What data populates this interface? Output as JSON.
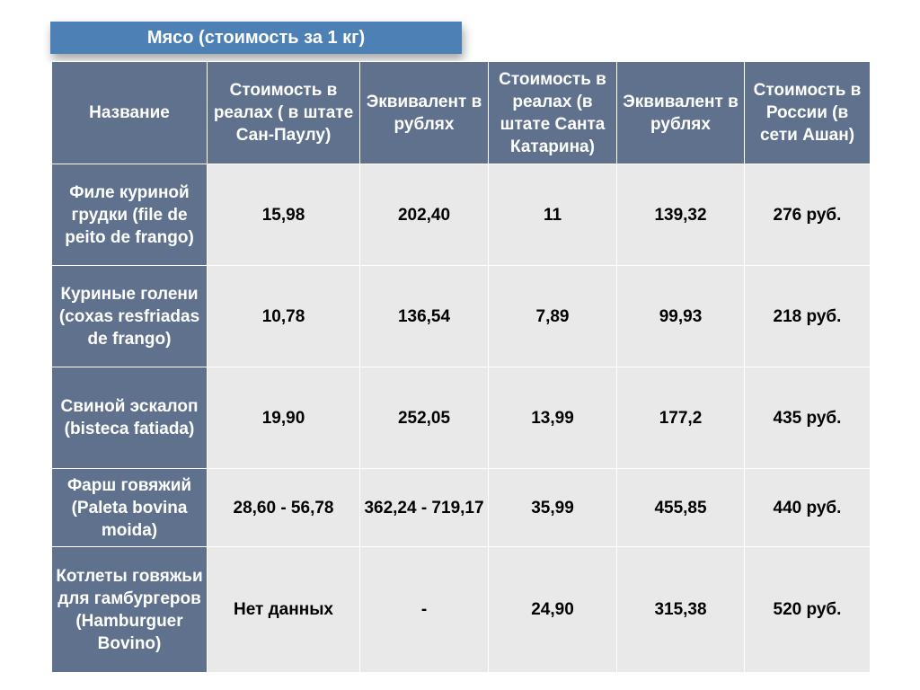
{
  "title": "Мясо (стоимость за 1 кг)",
  "table": {
    "headers": [
      "Название",
      "Стоимость в реалах ( в штате Сан-Паулу)",
      "Эквивалент в рублях",
      "Стоимость в реалах (в штате Санта Катарина)",
      "Эквивалент в рублях",
      "Стоимость в России (в сети Ашан)"
    ],
    "rows": [
      {
        "name": "Филе куриной грудки (file de peito de frango)",
        "cells": [
          "15,98",
          "202,40",
          "11",
          "139,32",
          "276 руб."
        ]
      },
      {
        "name": "Куриные голени (coxas resfriadas de frango)",
        "cells": [
          "10,78",
          "136,54",
          "7,89",
          "99,93",
          "218 руб."
        ]
      },
      {
        "name": "Свиной эскалоп (bisteca fatiada)",
        "cells": [
          "19,90",
          "252,05",
          "13,99",
          "177,2",
          "435 руб."
        ]
      },
      {
        "name": "Фарш говяжий (Paleta bovina moida)",
        "cells": [
          "28,60 - 56,78",
          "362,24 - 719,17",
          "35,99",
          "455,85",
          "440 руб."
        ]
      },
      {
        "name": "Котлеты говяжьи для гамбургеров (Hamburguer Bovino)",
        "cells": [
          "Нет данных",
          "-",
          "24,90",
          "315,38",
          "520 руб."
        ]
      }
    ]
  }
}
